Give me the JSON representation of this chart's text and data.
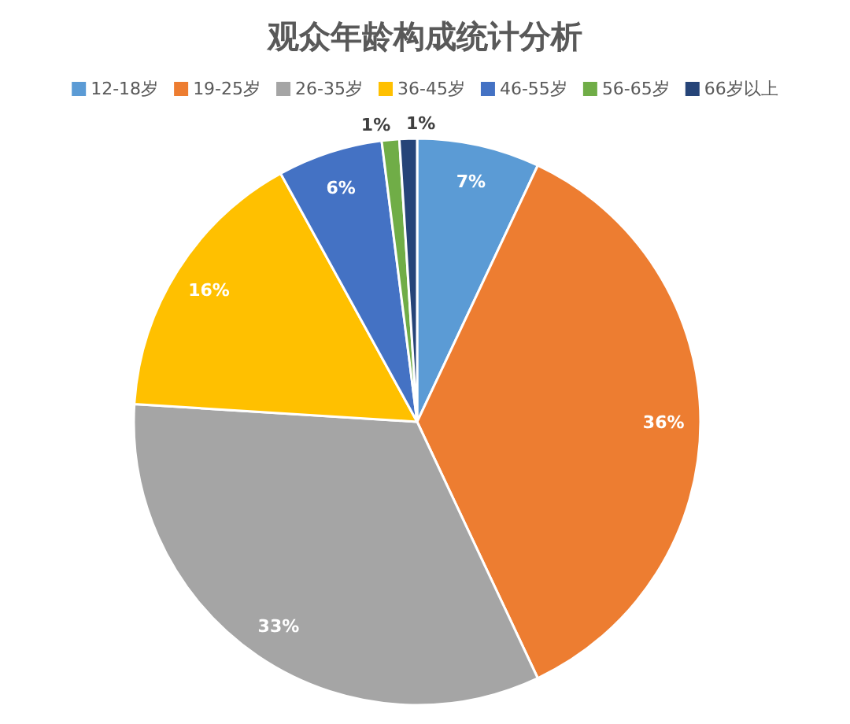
{
  "chart_data": {
    "type": "pie",
    "title": "观众年龄构成统计分析",
    "categories": [
      "12-18岁",
      "19-25岁",
      "26-35岁",
      "36-45岁",
      "46-55岁",
      "56-65岁",
      "66岁以上"
    ],
    "values": [
      7,
      36,
      33,
      16,
      6,
      1,
      1
    ],
    "colors": [
      "#5b9bd5",
      "#ed7d31",
      "#a5a5a5",
      "#ffc000",
      "#4472c4",
      "#70ad47",
      "#264478"
    ],
    "value_labels": [
      "7%",
      "36%",
      "33%",
      "16%",
      "6%",
      "1%",
      "1%"
    ],
    "legend": "top"
  }
}
